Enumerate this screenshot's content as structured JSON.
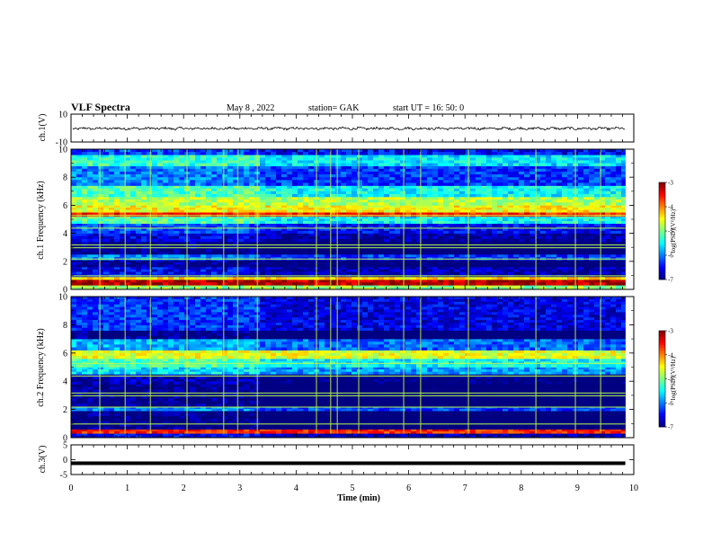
{
  "header": {
    "title": "VLF Spectra",
    "date": "May 8 , 2022",
    "station": "station= GAK",
    "start_ut": "start UT = 16: 50: 0"
  },
  "chart_data": [
    {
      "type": "line",
      "name": "ch1-waveform",
      "ylabel": "ch.1(V)",
      "ylim": [
        -10,
        10
      ],
      "yticks": [
        10,
        -10
      ],
      "xlim": [
        0,
        10
      ],
      "level": -0.3
    },
    {
      "type": "heatmap",
      "name": "ch1-spectrogram",
      "ylabel": "ch.1 Frequency (kHz)",
      "ylim": [
        0,
        10
      ],
      "yticks": [
        0,
        2,
        4,
        6,
        8,
        10
      ],
      "xlim": [
        0,
        9.85
      ],
      "colorbar": {
        "label": "log(PSD)(V²/Hz)",
        "range": [
          -7,
          -3
        ],
        "ticks": [
          -3,
          -4,
          -5,
          -6,
          -7
        ]
      },
      "bands": [
        {
          "f": [
            0.0,
            0.3
          ],
          "level": -4.9
        },
        {
          "f": [
            0.3,
            0.7
          ],
          "level": -3.2
        },
        {
          "f": [
            0.7,
            0.9
          ],
          "level": -4.4
        },
        {
          "f": [
            0.9,
            1.6
          ],
          "level": -6.5
        },
        {
          "f": [
            1.6,
            2.1
          ],
          "level": -6.9
        },
        {
          "f": [
            2.1,
            2.5
          ],
          "level": -6.0
        },
        {
          "f": [
            2.5,
            3.4
          ],
          "level": -7.0
        },
        {
          "f": [
            3.4,
            4.0
          ],
          "level": -6.6
        },
        {
          "f": [
            4.0,
            4.7
          ],
          "level": -6.2
        },
        {
          "f": [
            4.7,
            5.2
          ],
          "level": -5.2
        },
        {
          "f": [
            5.2,
            5.5
          ],
          "level": -3.6
        },
        {
          "f": [
            5.5,
            6.0
          ],
          "level": -4.5
        },
        {
          "f": [
            6.0,
            6.6
          ],
          "level": -4.8
        },
        {
          "f": [
            6.6,
            7.4
          ],
          "level": -5.2
        },
        {
          "f": [
            7.4,
            8.8
          ],
          "level": -6.0
        },
        {
          "f": [
            8.8,
            9.6
          ],
          "level": -5.3
        },
        {
          "f": [
            9.6,
            10.0
          ],
          "level": -6.2
        }
      ]
    },
    {
      "type": "heatmap",
      "name": "ch2-spectrogram",
      "ylabel": "ch.2 Frequency (kHz)",
      "ylim": [
        0,
        10
      ],
      "yticks": [
        0,
        2,
        4,
        6,
        8,
        10
      ],
      "xlim": [
        0,
        9.85
      ],
      "colorbar": {
        "label": "log(PSD)(V²/Hz)",
        "range": [
          -7,
          -3
        ],
        "ticks": [
          -3,
          -4,
          -5,
          -6,
          -7
        ]
      },
      "bands": [
        {
          "f": [
            0.0,
            0.3
          ],
          "level": -6.5
        },
        {
          "f": [
            0.3,
            0.6
          ],
          "level": -3.6
        },
        {
          "f": [
            0.6,
            1.9
          ],
          "level": -7.0
        },
        {
          "f": [
            1.9,
            2.2
          ],
          "level": -6.0
        },
        {
          "f": [
            2.2,
            3.8
          ],
          "level": -7.0
        },
        {
          "f": [
            3.8,
            4.5
          ],
          "level": -6.8
        },
        {
          "f": [
            4.5,
            5.0
          ],
          "level": -5.6
        },
        {
          "f": [
            5.0,
            5.6
          ],
          "level": -5.2
        },
        {
          "f": [
            5.6,
            6.2
          ],
          "level": -4.6
        },
        {
          "f": [
            6.2,
            7.0
          ],
          "level": -5.8
        },
        {
          "f": [
            7.0,
            7.6
          ],
          "level": -7.0
        },
        {
          "f": [
            7.6,
            10.0
          ],
          "level": -6.3
        }
      ]
    },
    {
      "type": "line",
      "name": "ch3-waveform",
      "ylabel": "ch.3(V)",
      "ylim": [
        -5,
        5
      ],
      "yticks": [
        5,
        0,
        -5
      ],
      "xlim": [
        0,
        10
      ],
      "level": -1.2
    }
  ],
  "x_axis": {
    "label": "Time (min)",
    "range": [
      0,
      10
    ],
    "ticks": [
      "0",
      "1",
      "2",
      "3",
      "4",
      "5",
      "6",
      "7",
      "8",
      "9",
      "10"
    ]
  }
}
